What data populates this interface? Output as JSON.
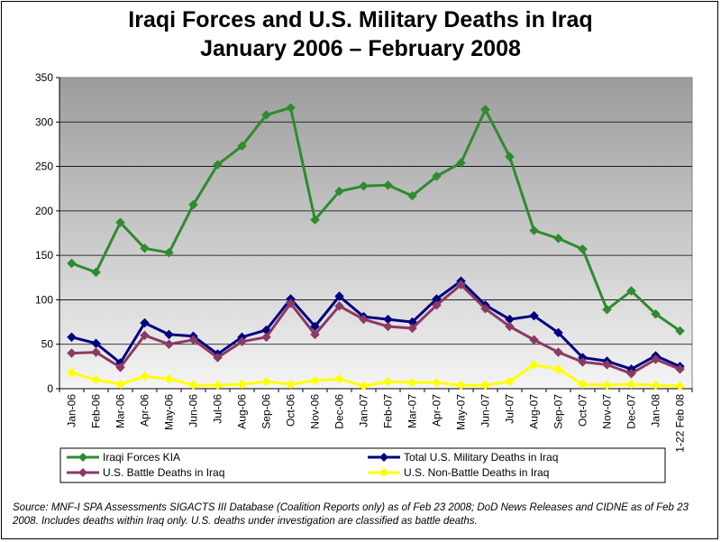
{
  "title_line1": "Iraqi Forces and U.S. Military Deaths in Iraq",
  "title_line2": "January 2006 – February 2008",
  "source_note": "Source:  MNF-I SPA Assessments SIGACTS III Database (Coalition Reports only) as of Feb 23 2008; DoD News Releases and CIDNE as of Feb 23 2008.  Includes deaths within Iraq only.  U.S. deaths under investigation are classified as battle deaths.",
  "chart_data": {
    "type": "line",
    "ylim": [
      0,
      350
    ],
    "yticks": [
      0,
      50,
      100,
      150,
      200,
      250,
      300,
      350
    ],
    "grid": true,
    "legend_position": "bottom",
    "categories": [
      "Jan-06",
      "Feb-06",
      "Mar-06",
      "Apr-06",
      "May-06",
      "Jun-06",
      "Jul-06",
      "Aug-06",
      "Sep-06",
      "Oct-06",
      "Nov-06",
      "Dec-06",
      "Jan-07",
      "Feb-07",
      "Mar-07",
      "Apr-07",
      "May-07",
      "Jun-07",
      "Jul-07",
      "Aug-07",
      "Sep-07",
      "Oct-07",
      "Nov-07",
      "Dec-07",
      "Jan-08",
      "1-22 Feb 08"
    ],
    "series": [
      {
        "name": "Iraqi Forces KIA",
        "color": "#2E8B2E",
        "values": [
          141,
          131,
          187,
          158,
          153,
          207,
          252,
          273,
          308,
          316,
          190,
          222,
          228,
          229,
          217,
          239,
          254,
          314,
          261,
          178,
          169,
          157,
          89,
          110,
          84,
          65
        ]
      },
      {
        "name": "Total U.S. Military Deaths in Iraq",
        "color": "#000080",
        "values": [
          58,
          51,
          29,
          74,
          61,
          59,
          39,
          58,
          66,
          101,
          70,
          104,
          81,
          78,
          75,
          101,
          121,
          94,
          78,
          82,
          63,
          35,
          31,
          22,
          37,
          25
        ]
      },
      {
        "name": "U.S. Battle Deaths in Iraq",
        "color": "#8B3A62",
        "values": [
          40,
          41,
          24,
          60,
          50,
          55,
          35,
          53,
          58,
          96,
          61,
          93,
          78,
          70,
          68,
          94,
          117,
          90,
          70,
          55,
          41,
          30,
          27,
          17,
          33,
          22
        ]
      },
      {
        "name": "U.S. Non-Battle Deaths in Iraq",
        "color": "#FFFF00",
        "values": [
          18,
          10,
          5,
          14,
          11,
          4,
          4,
          5,
          8,
          5,
          9,
          11,
          3,
          8,
          7,
          7,
          4,
          4,
          8,
          27,
          22,
          5,
          4,
          5,
          4,
          3
        ]
      }
    ]
  }
}
